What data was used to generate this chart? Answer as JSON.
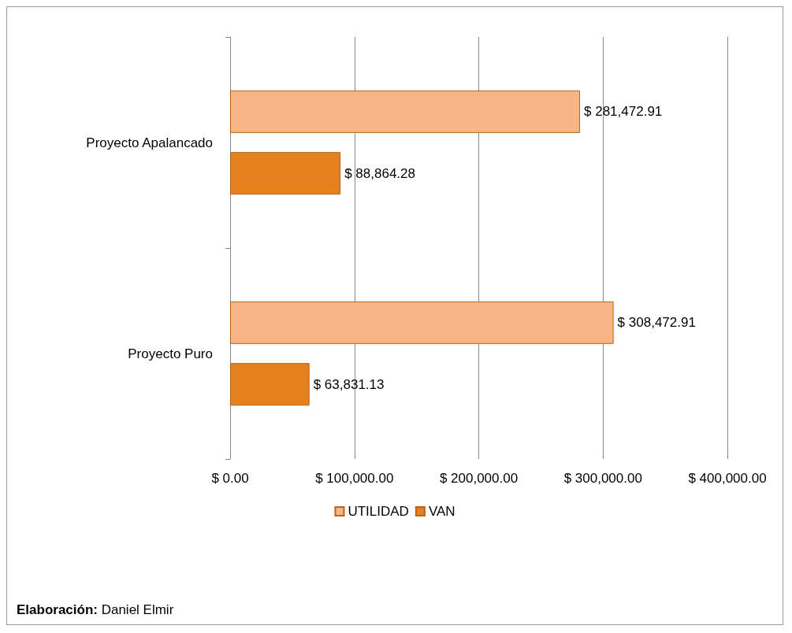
{
  "chart_data": {
    "type": "bar",
    "orientation": "horizontal",
    "categories": [
      "Proyecto Apalancado",
      "Proyecto Puro"
    ],
    "series": [
      {
        "name": "UTILIDAD",
        "color": "#f7b585",
        "values": [
          281472.91,
          308472.91
        ],
        "value_labels": [
          "$ 281,472.91",
          "$ 308,472.91"
        ]
      },
      {
        "name": "VAN",
        "color": "#e5801f",
        "values": [
          88864.28,
          63831.13
        ],
        "value_labels": [
          "$ 88,864.28",
          "$ 63,831.13"
        ]
      }
    ],
    "xlim": [
      0,
      400000
    ],
    "xticks": [
      {
        "value": 0,
        "label": "$ 0.00"
      },
      {
        "value": 100000,
        "label": "$ 100,000.00"
      },
      {
        "value": 200000,
        "label": "$ 200,000.00"
      },
      {
        "value": 300000,
        "label": "$ 300,000.00"
      },
      {
        "value": 400000,
        "label": "$ 400,000.00"
      }
    ],
    "grid": "x",
    "legend": "bottom",
    "annotations": [
      "Elaboración: Daniel Elmir"
    ]
  }
}
